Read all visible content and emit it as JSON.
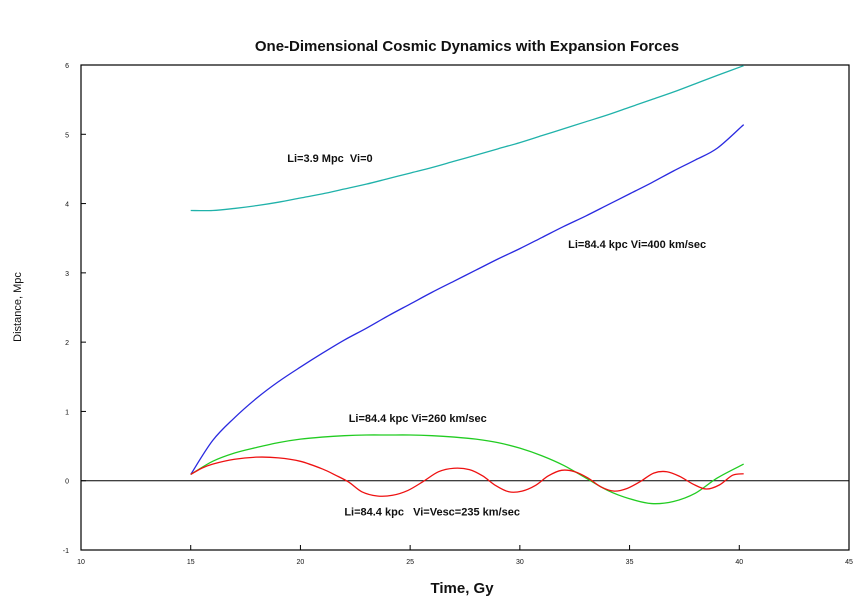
{
  "chart_data": {
    "type": "line",
    "title": "One-Dimensional Cosmic Dynamics with Expansion Forces",
    "xlabel": "Time,  Gy",
    "ylabel": "Distance, Mpc",
    "xlim": [
      10,
      45
    ],
    "ylim": [
      -1,
      6
    ],
    "xticks": [
      10,
      15,
      20,
      25,
      30,
      35,
      40,
      45
    ],
    "yticks": [
      -1,
      0,
      1,
      2,
      3,
      4,
      5,
      6
    ],
    "xtick_labels": [
      "10",
      "15",
      "20",
      "25",
      "30",
      "35",
      "40",
      "45"
    ],
    "ytick_labels": [
      "-1",
      "0",
      "1",
      "2",
      "3",
      "4",
      "5",
      "6"
    ],
    "grid": false,
    "legend": "none",
    "zero_line": true,
    "series": [
      {
        "name": "Li=3.9 Mpc  Vi=0",
        "color": "#20b2aa",
        "x": [
          15,
          16,
          17,
          18,
          19,
          20,
          21,
          22,
          23,
          24,
          25,
          26,
          27,
          28,
          29,
          30,
          31,
          32,
          33,
          34,
          35,
          36,
          37,
          38,
          39,
          40.2
        ],
        "y": [
          3.9,
          3.9,
          3.93,
          3.97,
          4.02,
          4.08,
          4.14,
          4.21,
          4.28,
          4.36,
          4.44,
          4.52,
          4.61,
          4.7,
          4.79,
          4.88,
          4.98,
          5.08,
          5.18,
          5.28,
          5.39,
          5.5,
          5.61,
          5.73,
          5.85,
          5.99
        ]
      },
      {
        "name": "Li=84.4 kpc Vi=400 km/sec",
        "color": "#2a2ae0",
        "x": [
          15,
          16,
          17,
          18,
          19,
          20,
          21,
          22,
          23,
          24,
          25,
          26,
          27,
          28,
          29,
          30,
          31,
          32,
          33,
          34,
          35,
          36,
          37,
          38,
          39,
          40.2
        ],
        "y": [
          0.09,
          0.58,
          0.91,
          1.19,
          1.43,
          1.64,
          1.84,
          2.03,
          2.2,
          2.38,
          2.55,
          2.72,
          2.88,
          3.04,
          3.2,
          3.35,
          3.51,
          3.67,
          3.82,
          3.98,
          4.14,
          4.3,
          4.47,
          4.63,
          4.8,
          5.14
        ]
      },
      {
        "name": "Li=84.4 kpc Vi=260 km/sec",
        "color": "#22cc22",
        "x": [
          15,
          16,
          17,
          18,
          19,
          20,
          21,
          22,
          23,
          24,
          25,
          26,
          27,
          28,
          29,
          30,
          31,
          32,
          33,
          34,
          35,
          36,
          37,
          38,
          39,
          40.2
        ],
        "y": [
          0.09,
          0.28,
          0.4,
          0.48,
          0.55,
          0.6,
          0.63,
          0.65,
          0.66,
          0.66,
          0.66,
          0.65,
          0.63,
          0.6,
          0.55,
          0.47,
          0.36,
          0.22,
          0.04,
          -0.14,
          -0.26,
          -0.33,
          -0.3,
          -0.18,
          0.04,
          0.24
        ]
      },
      {
        "name": "Li=84.4 kpc   Vi=Vesc=235 km/sec",
        "color": "#ee1111",
        "x": [
          15,
          15.5,
          16,
          17,
          18,
          19,
          20,
          21,
          21.6,
          22.2,
          22.8,
          23.5,
          24.2,
          24.9,
          25.6,
          26.3,
          27,
          27.7,
          28.3,
          28.9,
          29.5,
          30.1,
          30.7,
          31.3,
          31.9,
          32.5,
          33.1,
          33.7,
          34.3,
          34.9,
          35.5,
          36.1,
          36.7,
          37.3,
          37.9,
          38.5,
          39.1,
          39.7,
          40.2
        ],
        "y": [
          0.09,
          0.18,
          0.24,
          0.31,
          0.34,
          0.33,
          0.28,
          0.17,
          0.08,
          -0.02,
          -0.16,
          -0.22,
          -0.21,
          -0.14,
          -0.01,
          0.13,
          0.18,
          0.16,
          0.07,
          -0.07,
          -0.16,
          -0.15,
          -0.07,
          0.07,
          0.15,
          0.13,
          0.04,
          -0.09,
          -0.15,
          -0.11,
          -0.01,
          0.11,
          0.13,
          0.06,
          -0.05,
          -0.12,
          -0.06,
          0.08,
          0.1
        ]
      }
    ],
    "annotations": [
      {
        "text": "Li=3.9 Mpc  Vi=0",
        "x": 19.4,
        "y": 4.6
      },
      {
        "text": "Li=84.4 kpc Vi=400 km/sec",
        "x": 32.2,
        "y": 3.36
      },
      {
        "text": "Li=84.4 kpc Vi=260 km/sec",
        "x": 22.2,
        "y": 0.85
      },
      {
        "text": "Li=84.4 kpc   Vi=Vesc=235 km/sec",
        "x": 22,
        "y": -0.5
      }
    ]
  }
}
